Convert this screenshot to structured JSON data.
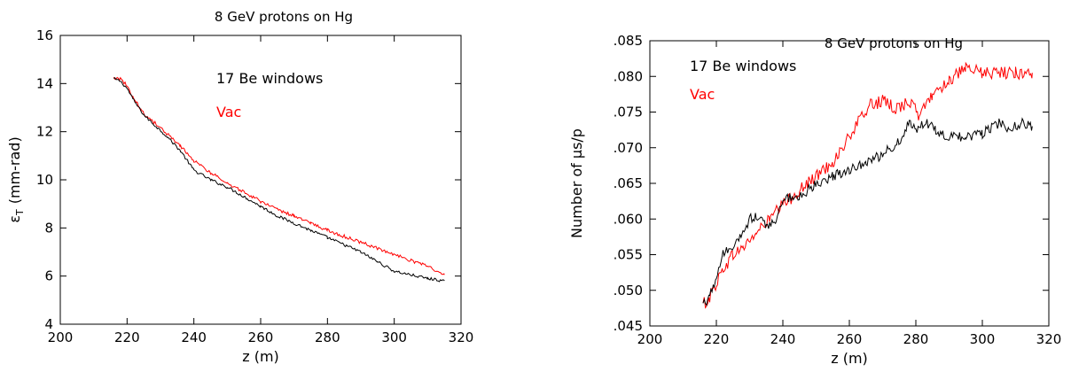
{
  "chart_data": [
    {
      "type": "line",
      "title": "8 GeV protons on Hg",
      "xlabel": "z  (m)",
      "ylabel": "ε_T  (mm-rad)",
      "ylabel_main": "ε",
      "ylabel_sub": "T",
      "ylabel_rest": "(mm-rad)",
      "xlim": [
        200,
        320
      ],
      "ylim": [
        4,
        16
      ],
      "xticks": [
        200,
        220,
        240,
        260,
        280,
        300,
        320
      ],
      "yticks": [
        4,
        6,
        8,
        10,
        12,
        14,
        16
      ],
      "xtick_labels": [
        "200",
        "220",
        "240",
        "260",
        "280",
        "300",
        "320"
      ],
      "ytick_labels": [
        "4",
        "6",
        "8",
        "10",
        "12",
        "14",
        "16"
      ],
      "grid": false,
      "legend": [
        {
          "label": "17  Be windows",
          "color": "#000000"
        },
        {
          "label": "Vac",
          "color": "#ff0000"
        }
      ],
      "series": [
        {
          "name": "17  Be windows",
          "color": "#000000",
          "x": [
            216,
            218,
            220,
            222,
            225,
            228,
            232,
            236,
            240,
            245,
            250,
            255,
            260,
            265,
            270,
            275,
            280,
            285,
            290,
            295,
            300,
            305,
            310,
            315
          ],
          "y": [
            14.2,
            14.1,
            13.8,
            13.3,
            12.7,
            12.3,
            11.8,
            11.2,
            10.4,
            10.0,
            9.7,
            9.3,
            8.9,
            8.5,
            8.2,
            7.9,
            7.6,
            7.3,
            7.0,
            6.6,
            6.2,
            6.05,
            5.9,
            5.8
          ]
        },
        {
          "name": "Vac",
          "color": "#ff0000",
          "x": [
            216,
            218,
            220,
            222,
            225,
            228,
            232,
            236,
            240,
            245,
            250,
            255,
            260,
            265,
            270,
            275,
            280,
            285,
            290,
            295,
            300,
            305,
            310,
            315
          ],
          "y": [
            14.25,
            14.2,
            13.9,
            13.4,
            12.75,
            12.4,
            11.9,
            11.4,
            10.8,
            10.3,
            9.85,
            9.5,
            9.1,
            8.75,
            8.5,
            8.2,
            7.9,
            7.65,
            7.4,
            7.15,
            6.9,
            6.65,
            6.4,
            6.05
          ]
        }
      ]
    },
    {
      "type": "line",
      "title": "8 GeV protons on Hg",
      "xlabel": "z  (m)",
      "ylabel": "Number  of  μs/p",
      "xlim": [
        200,
        320
      ],
      "ylim": [
        0.045,
        0.085
      ],
      "xticks": [
        200,
        220,
        240,
        260,
        280,
        300,
        320
      ],
      "yticks": [
        0.045,
        0.05,
        0.055,
        0.06,
        0.065,
        0.07,
        0.075,
        0.08,
        0.085
      ],
      "xtick_labels": [
        "200",
        "220",
        "240",
        "260",
        "280",
        "300",
        "320"
      ],
      "ytick_labels": [
        ".045",
        ".050",
        ".055",
        ".060",
        ".065",
        ".070",
        ".075",
        ".080",
        ".085"
      ],
      "grid": false,
      "legend": [
        {
          "label": "17  Be windows",
          "color": "#000000"
        },
        {
          "label": "Vac",
          "color": "#ff0000"
        }
      ],
      "series": [
        {
          "name": "17  Be windows",
          "color": "#000000",
          "x": [
            216,
            218,
            220,
            222,
            225,
            228,
            230,
            232,
            235,
            238,
            240,
            245,
            250,
            255,
            260,
            265,
            270,
            275,
            278,
            280,
            283,
            286,
            290,
            295,
            300,
            305,
            308,
            312,
            315
          ],
          "y": [
            0.048,
            0.049,
            0.052,
            0.055,
            0.056,
            0.058,
            0.06,
            0.0605,
            0.059,
            0.06,
            0.063,
            0.063,
            0.065,
            0.066,
            0.067,
            0.068,
            0.069,
            0.071,
            0.0735,
            0.0725,
            0.0735,
            0.0725,
            0.0715,
            0.0715,
            0.072,
            0.0735,
            0.0725,
            0.0735,
            0.073
          ]
        },
        {
          "name": "Vac",
          "color": "#ff0000",
          "x": [
            216,
            218,
            220,
            222,
            225,
            228,
            232,
            236,
            240,
            245,
            250,
            255,
            258,
            262,
            266,
            270,
            274,
            278,
            281,
            285,
            290,
            295,
            300,
            305,
            310,
            315
          ],
          "y": [
            0.048,
            0.049,
            0.051,
            0.053,
            0.055,
            0.056,
            0.058,
            0.06,
            0.062,
            0.064,
            0.066,
            0.068,
            0.07,
            0.073,
            0.076,
            0.0765,
            0.0755,
            0.0765,
            0.0745,
            0.0775,
            0.0795,
            0.081,
            0.0805,
            0.0805,
            0.0805,
            0.0805
          ]
        }
      ]
    }
  ]
}
